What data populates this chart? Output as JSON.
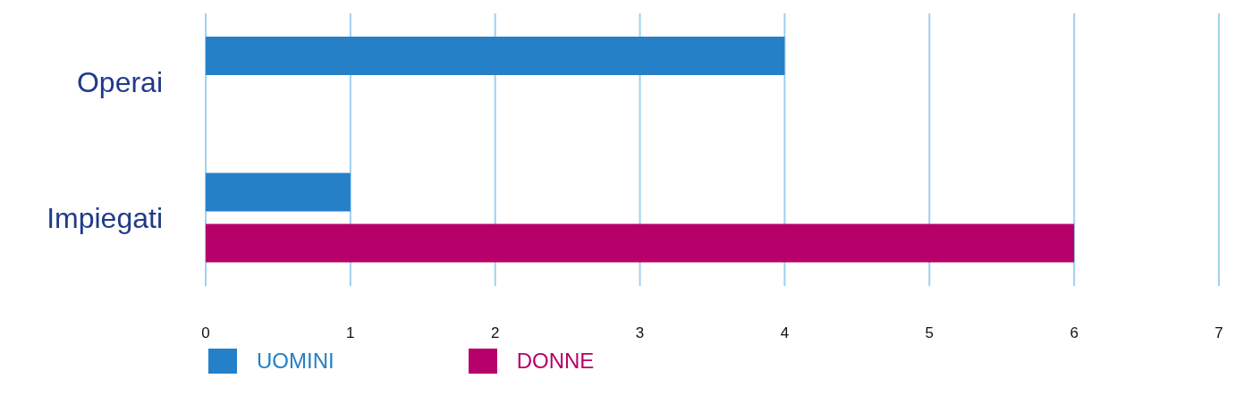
{
  "chart_data": {
    "type": "bar",
    "orientation": "horizontal",
    "categories": [
      "Operai",
      "Impiegati"
    ],
    "series": [
      {
        "name": "UOMINI",
        "color": "#2580c8",
        "values": [
          4,
          1
        ]
      },
      {
        "name": "DONNE",
        "color": "#b8006a",
        "values": [
          null,
          6
        ]
      }
    ],
    "xlim": [
      0,
      7
    ],
    "xticks": [
      0,
      1,
      2,
      3,
      4,
      5,
      6,
      7
    ],
    "grid": "x",
    "legend": "bottom left"
  }
}
